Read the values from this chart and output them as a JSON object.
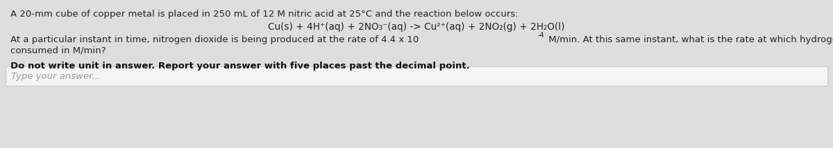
{
  "bg_color": "#dedede",
  "input_box_color": "#f5f5f5",
  "input_box_border": "#c8c8c8",
  "line1": "A 20-mm cube of copper metal is placed in 250 mL of 12 M nitric acid at 25°C and the reaction below occurs:",
  "line2": "Cu(s) + 4H⁺(aq) + 2NO₃⁻(aq) -> Cu²⁺(aq) + 2NO₂(g) + 2H₂O(l)",
  "line3a": "At a particular instant in time, nitrogen dioxide is being produced at the rate of 4.4 x 10",
  "line3b": "-4",
  "line3c": " M/min. At this same instant, what is the rate at which hydrogen ions are being",
  "line4": "consumed in M/min?",
  "line5": "Do not write unit in answer. Report your answer with five places past the decimal point.",
  "line6": "Type your answer...",
  "text_color": "#222222",
  "bold_color": "#111111",
  "placeholder_color": "#999999",
  "font_size_main": 9.5,
  "font_size_equation": 9.8,
  "font_size_bold": 9.5,
  "font_size_placeholder": 9.5,
  "font_size_super": 7.0
}
